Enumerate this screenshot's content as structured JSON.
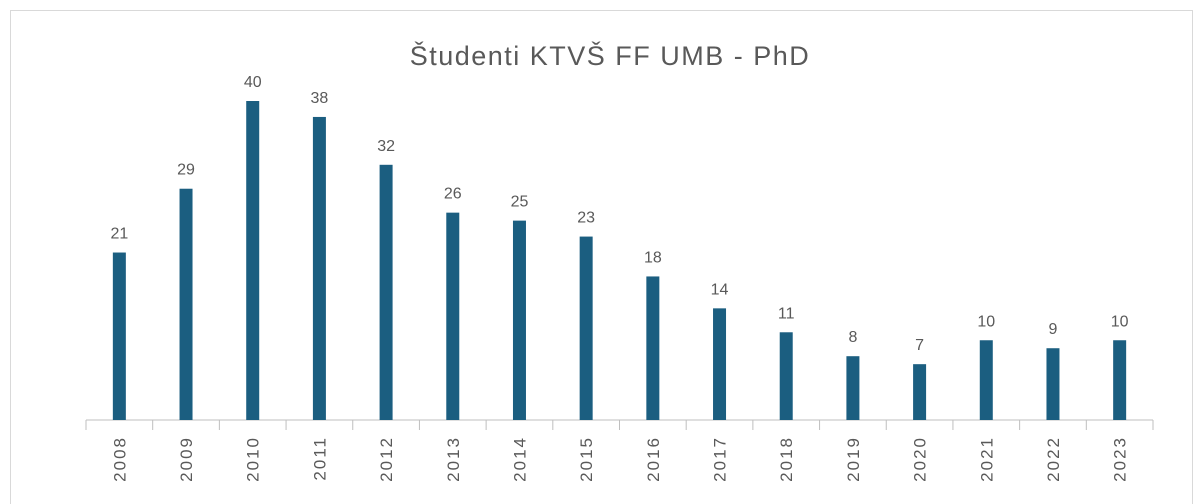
{
  "chart_data": {
    "type": "bar",
    "title": "Študenti KTVŠ FF UMB - PhD",
    "categories": [
      "2008",
      "2009",
      "2010",
      "2011",
      "2012",
      "2013",
      "2014",
      "2015",
      "2016",
      "2017",
      "2018",
      "2019",
      "2020",
      "2021",
      "2022",
      "2023"
    ],
    "values": [
      21,
      29,
      40,
      38,
      32,
      26,
      25,
      23,
      18,
      14,
      11,
      8,
      7,
      10,
      9,
      10
    ],
    "color": "#1b5e80"
  }
}
